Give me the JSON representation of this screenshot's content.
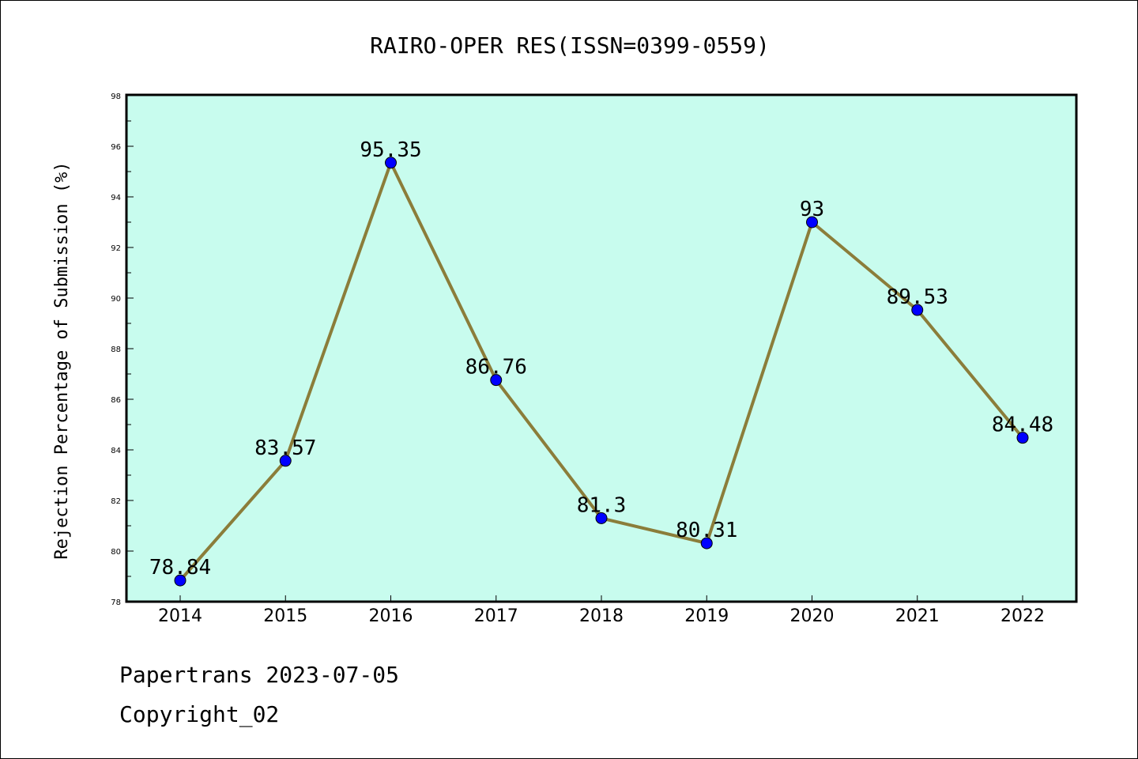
{
  "chart_data": {
    "type": "line",
    "title": "RAIRO-OPER RES(ISSN=0399-0559)",
    "xlabel": "",
    "ylabel": "Rejection Percentage of Submission (%)",
    "categories": [
      "2014",
      "2015",
      "2016",
      "2017",
      "2018",
      "2019",
      "2020",
      "2021",
      "2022"
    ],
    "series": [
      {
        "values": [
          78.84,
          83.57,
          95.35,
          86.76,
          81.3,
          80.31,
          93,
          89.53,
          84.48
        ],
        "labels": [
          "78.84",
          "83.57",
          "95.35",
          "86.76",
          "81.3",
          "80.31",
          "93",
          "89.53",
          "84.48"
        ]
      }
    ],
    "ylim": [
      78,
      98
    ],
    "yticks": [
      "78",
      "80",
      "82",
      "84",
      "86",
      "88",
      "90",
      "92",
      "94",
      "96",
      "98"
    ],
    "grid": false,
    "colors": {
      "plot_background": "#c8fcee",
      "line": "#8b7d3a",
      "marker": "#0000ff"
    }
  },
  "footer": {
    "line1": "Papertrans 2023-07-05",
    "line2": "Copyright_02"
  }
}
